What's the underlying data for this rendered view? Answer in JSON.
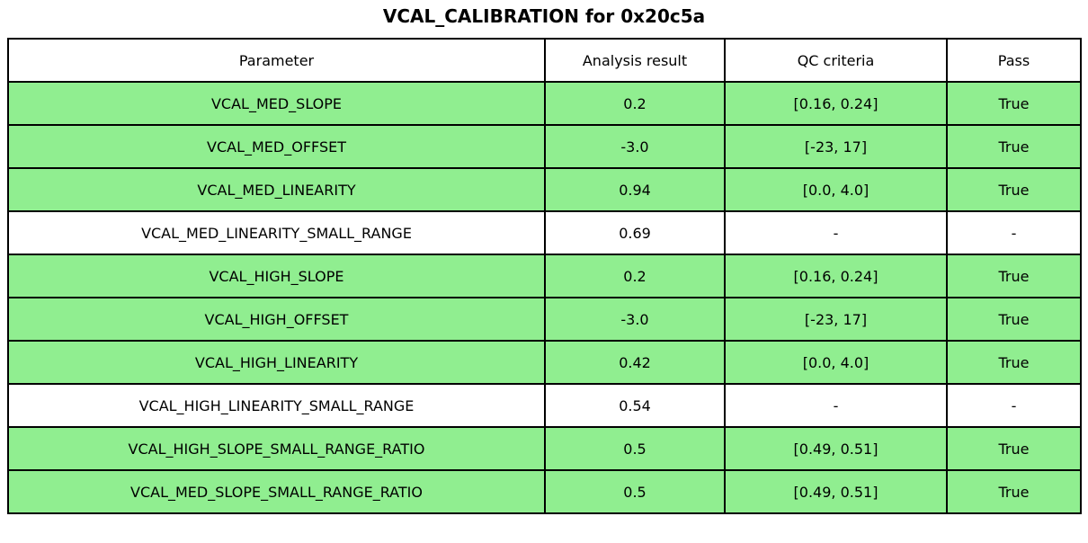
{
  "title": "VCAL_CALIBRATION for 0x20c5a",
  "chart_data": {
    "type": "table",
    "title": "VCAL_CALIBRATION for 0x20c5a",
    "columns": [
      "Parameter",
      "Analysis result",
      "QC criteria",
      "Pass"
    ],
    "rows": [
      [
        "VCAL_MED_SLOPE",
        "0.2",
        "[0.16, 0.24]",
        "True"
      ],
      [
        "VCAL_MED_OFFSET",
        "-3.0",
        "[-23, 17]",
        "True"
      ],
      [
        "VCAL_MED_LINEARITY",
        "0.94",
        "[0.0, 4.0]",
        "True"
      ],
      [
        "VCAL_MED_LINEARITY_SMALL_RANGE",
        "0.69",
        "-",
        "-"
      ],
      [
        "VCAL_HIGH_SLOPE",
        "0.2",
        "[0.16, 0.24]",
        "True"
      ],
      [
        "VCAL_HIGH_OFFSET",
        "-3.0",
        "[-23, 17]",
        "True"
      ],
      [
        "VCAL_HIGH_LINEARITY",
        "0.42",
        "[0.0, 4.0]",
        "True"
      ],
      [
        "VCAL_HIGH_LINEARITY_SMALL_RANGE",
        "0.54",
        "-",
        "-"
      ],
      [
        "VCAL_HIGH_SLOPE_SMALL_RANGE_RATIO",
        "0.5",
        "[0.49, 0.51]",
        "True"
      ],
      [
        "VCAL_MED_SLOPE_SMALL_RANGE_RATIO",
        "0.5",
        "[0.49, 0.51]",
        "True"
      ]
    ],
    "row_highlight": [
      true,
      true,
      true,
      false,
      true,
      true,
      true,
      false,
      true,
      true
    ],
    "legend_position": "none",
    "grid": true,
    "colors": {
      "pass_row": "#90ee90",
      "neutral_row": "#ffffff",
      "border": "#000000",
      "text": "#000000"
    }
  }
}
